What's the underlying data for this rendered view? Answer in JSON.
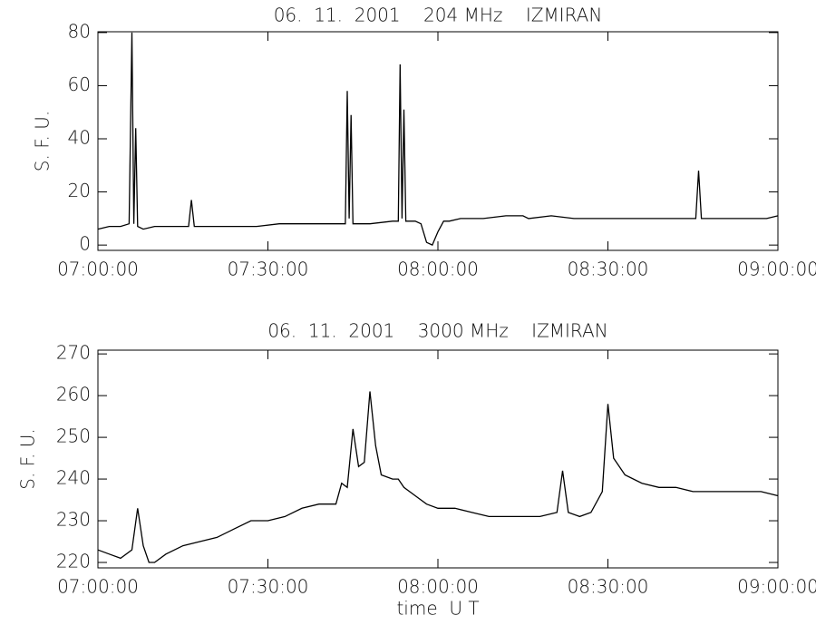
{
  "chart_data": [
    {
      "type": "line",
      "title": "06.  11.  2001    204 MHz    IZMIRAN",
      "ylabel": "S. F. U.",
      "color": "#000000",
      "x": [
        "07:00:00",
        "07:02:00",
        "07:04:00",
        "07:05:30",
        "07:06:00",
        "07:06:20",
        "07:06:40",
        "07:07:00",
        "07:08:00",
        "07:10:00",
        "07:12:00",
        "07:14:00",
        "07:16:00",
        "07:16:30",
        "07:17:00",
        "07:20:00",
        "07:24:00",
        "07:28:00",
        "07:32:00",
        "07:36:00",
        "07:40:00",
        "07:43:40",
        "07:44:00",
        "07:44:20",
        "07:44:40",
        "07:45:00",
        "07:48:00",
        "07:52:00",
        "07:53:00",
        "07:53:20",
        "07:53:40",
        "07:54:00",
        "07:54:20",
        "07:56:00",
        "07:57:00",
        "07:58:00",
        "07:59:00",
        "08:00:00",
        "08:01:00",
        "08:02:00",
        "08:04:00",
        "08:08:00",
        "08:12:00",
        "08:15:00",
        "08:16:00",
        "08:20:00",
        "08:24:00",
        "08:28:00",
        "08:32:00",
        "08:36:00",
        "08:40:00",
        "08:44:00",
        "08:45:30",
        "08:46:00",
        "08:46:30",
        "08:50:00",
        "08:54:00",
        "08:58:00",
        "09:00:00"
      ],
      "values": [
        6,
        7,
        7,
        8,
        80,
        8,
        44,
        7,
        6,
        7,
        7,
        7,
        7,
        17,
        7,
        7,
        7,
        7,
        8,
        8,
        8,
        8,
        58,
        10,
        49,
        8,
        8,
        9,
        9,
        68,
        10,
        51,
        9,
        9,
        8,
        1,
        0,
        5,
        9,
        9,
        10,
        10,
        11,
        11,
        10,
        11,
        10,
        10,
        10,
        10,
        10,
        10,
        10,
        28,
        10,
        10,
        10,
        10,
        11
      ],
      "xlim": [
        "07:00:00",
        "09:00:00"
      ],
      "xticks": [
        "07:00:00",
        "07:30:00",
        "08:00:00",
        "08:30:00",
        "09:00:00"
      ],
      "ylim": [
        -2,
        80.3
      ],
      "yticks": [
        0,
        20,
        40,
        60,
        80
      ]
    },
    {
      "type": "line",
      "title": "06.  11.  2001    3000 MHz    IZMIRAN",
      "ylabel": "S. F. U.",
      "xlabel": "time  U T",
      "color": "#000000",
      "x": [
        "07:00:00",
        "07:02:00",
        "07:04:00",
        "07:06:00",
        "07:07:00",
        "07:08:00",
        "07:09:00",
        "07:10:00",
        "07:12:00",
        "07:15:00",
        "07:18:00",
        "07:21:00",
        "07:24:00",
        "07:27:00",
        "07:30:00",
        "07:33:00",
        "07:36:00",
        "07:39:00",
        "07:42:00",
        "07:43:00",
        "07:44:00",
        "07:45:00",
        "07:46:00",
        "07:47:00",
        "07:48:00",
        "07:49:00",
        "07:50:00",
        "07:52:00",
        "07:53:00",
        "07:54:00",
        "07:56:00",
        "07:58:00",
        "08:00:00",
        "08:03:00",
        "08:06:00",
        "08:09:00",
        "08:12:00",
        "08:15:00",
        "08:18:00",
        "08:21:00",
        "08:22:00",
        "08:23:00",
        "08:25:00",
        "08:27:00",
        "08:29:00",
        "08:30:00",
        "08:31:00",
        "08:33:00",
        "08:36:00",
        "08:39:00",
        "08:42:00",
        "08:45:00",
        "08:48:00",
        "08:51:00",
        "08:54:00",
        "08:57:00",
        "09:00:00"
      ],
      "values": [
        223,
        222,
        221,
        223,
        233,
        224,
        220,
        220,
        222,
        224,
        225,
        226,
        228,
        230,
        230,
        231,
        233,
        234,
        234,
        239,
        238,
        252,
        243,
        244,
        261,
        248,
        241,
        240,
        240,
        238,
        236,
        234,
        233,
        233,
        232,
        231,
        231,
        231,
        231,
        232,
        242,
        232,
        231,
        232,
        237,
        258,
        245,
        241,
        239,
        238,
        238,
        237,
        237,
        237,
        237,
        237,
        236
      ],
      "xlim": [
        "07:00:00",
        "09:00:00"
      ],
      "xticks": [
        "07:00:00",
        "07:30:00",
        "08:00:00",
        "08:30:00",
        "09:00:00"
      ],
      "ylim": [
        218.7,
        270.9
      ],
      "yticks": [
        220,
        230,
        240,
        250,
        260,
        270
      ]
    }
  ]
}
